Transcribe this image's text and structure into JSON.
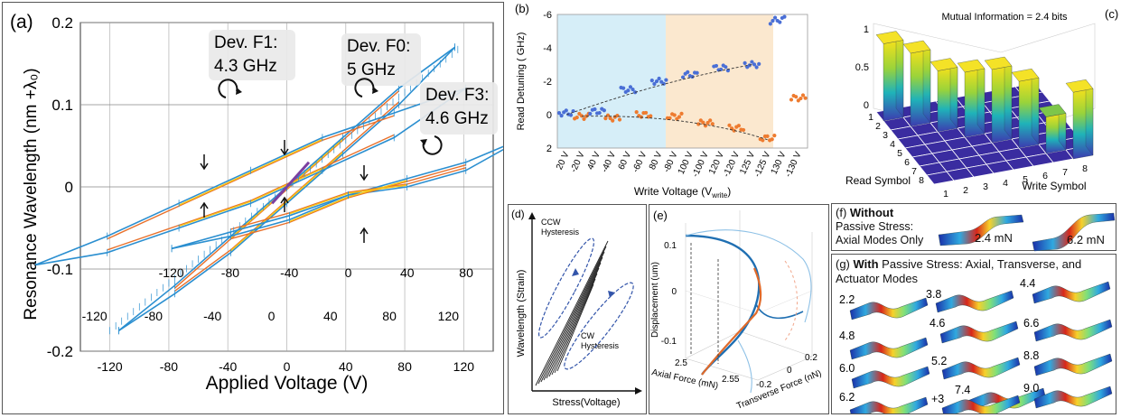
{
  "panel_a": {
    "label": "(a)",
    "xlabel": "Applied Voltage (V)",
    "ylabel": "Resonance Wavelength (nm +λ₀)",
    "y_ticks": [
      "0.2",
      "0.1",
      "0",
      "-0.1",
      "-0.2"
    ],
    "x_ticks_main": [
      "-120",
      "-80",
      "-40",
      "0",
      "40",
      "80",
      "120"
    ],
    "x_ticks_f0": [
      "-120",
      "-80",
      "-40",
      "0",
      "40",
      "80",
      "120"
    ],
    "x_ticks_f3": [
      "-120",
      "-80",
      "-40",
      "0",
      "40",
      "80",
      "120"
    ],
    "dev_f1": [
      "Dev. F1:",
      "4.3 GHz"
    ],
    "dev_f0": [
      "Dev. F0:",
      "5 GHz"
    ],
    "dev_f3": [
      "Dev. F3:",
      "4.6 GHz"
    ]
  },
  "panel_b": {
    "label": "(b)",
    "ylabel": "Read Detuning  ( GHz)",
    "xlabel": "Write Voltage (V",
    "xlabel_sub": "write",
    "xlabel_end": ")",
    "y_ticks": [
      "-6",
      "-4",
      "-2",
      "0",
      "2"
    ],
    "x_ticks": [
      "20 V",
      "-20 V",
      "40 V",
      "-40 V",
      "60 V",
      "-60 V",
      "80 V",
      "-80 V",
      "100 V",
      "-100 V",
      "120 V",
      "-120 V",
      "125 V",
      "-125 V",
      "130 V",
      "-130 V"
    ]
  },
  "panel_c": {
    "label": "(c)",
    "title": "Mutual Information = 2.4 bits",
    "z_ticks": [
      "1",
      "0.5",
      "0"
    ],
    "read_ticks": [
      "1",
      "2",
      "3",
      "4",
      "5",
      "6",
      "7",
      "8"
    ],
    "write_ticks": [
      "1",
      "2",
      "3",
      "4",
      "5",
      "6",
      "7",
      "8"
    ],
    "read_label": "Read Symbol",
    "write_label": "Write Symbol"
  },
  "panel_d": {
    "label": "(d)",
    "ccw": [
      "CCW",
      "Hysteresis"
    ],
    "cw": [
      "CW",
      "Hysteresis"
    ],
    "ylabel": "Wavelength (Strain)",
    "xlabel": "Stress(Voltage)"
  },
  "panel_e": {
    "label": "(e)",
    "z_ticks": [
      "0.1",
      "0",
      "-0.1"
    ],
    "zlabel": "Displacement (um)",
    "axial_ticks": [
      "2.5",
      "2.55"
    ],
    "axial_label": "Axial Force (mN)",
    "transverse_ticks": [
      "-0.2",
      "0",
      "0.2"
    ],
    "transverse_label": "Transverse Force (nN)"
  },
  "panel_f": {
    "label": "(f)",
    "bold": "Without",
    "line2": "Passive Stress:",
    "line3": "Axial Modes Only",
    "m1": "2.4 mN",
    "m2": "6.2 mN"
  },
  "panel_g": {
    "label": "(g)",
    "bold": "With",
    "rest": " Passive Stress: Axial, Transverse, and",
    "line2": "Actuator Modes",
    "modes": [
      "2.2",
      "3.8",
      "4.4",
      "4.6",
      "6.6",
      "4.8",
      "8.8",
      "6.0",
      "5.2",
      "7.4",
      "6.2",
      "+3",
      "9.0"
    ]
  },
  "colors": {
    "blue": "#2b8fd0",
    "orange": "#e8702a",
    "yellow": "#f5c518",
    "purple": "#7b3fa0",
    "b_blue": "#4a6fd6",
    "b_orange": "#ee7b2f",
    "cyan_bg": "#d6eef8",
    "tan_bg": "#fbe8cf"
  },
  "chart_data": [
    {
      "type": "line",
      "title": "",
      "xlabel": "Applied Voltage (V)",
      "ylabel": "Resonance Wavelength (nm +λ₀)",
      "ylim": [
        -0.2,
        0.2
      ],
      "xlim": [
        -120,
        120
      ],
      "grid": true,
      "series": [
        {
          "name": "Dev. F1: 4.3 GHz",
          "up_x": [
            -120,
            -80,
            -40,
            0,
            40,
            80,
            120
          ],
          "up_y": [
            -0.175,
            -0.12,
            -0.06,
            0.0,
            0.06,
            0.12,
            0.17
          ],
          "down_x": [
            120,
            80,
            40,
            0,
            -40,
            -80,
            -120
          ],
          "down_y": [
            0.17,
            0.1,
            0.04,
            -0.02,
            -0.08,
            -0.13,
            -0.175
          ]
        },
        {
          "name": "Dev. F0: 5 GHz",
          "up_x": [
            -120,
            -80,
            -40,
            0,
            40,
            80,
            120
          ],
          "up_y": [
            -0.095,
            -0.06,
            -0.02,
            0.02,
            0.06,
            0.09,
            0.12
          ],
          "down_x": [
            120,
            80,
            40,
            0,
            -40,
            -80,
            -120
          ],
          "down_y": [
            0.12,
            0.06,
            0.02,
            -0.02,
            -0.05,
            -0.08,
            -0.095
          ]
        },
        {
          "name": "Dev. F3: 4.6 GHz",
          "up_x": [
            -120,
            -80,
            -40,
            0,
            40,
            80,
            120
          ],
          "up_y": [
            -0.075,
            -0.06,
            -0.04,
            -0.01,
            0.01,
            0.03,
            0.06
          ],
          "down_x": [
            120,
            80,
            40,
            0,
            -40,
            -80,
            -120
          ],
          "down_y": [
            0.06,
            0.02,
            0.0,
            -0.01,
            -0.035,
            -0.055,
            -0.075
          ]
        }
      ]
    },
    {
      "type": "scatter",
      "title": "",
      "xlabel": "Write Voltage (Vwrite)",
      "ylabel": "Read Detuning  ( GHz)",
      "ylim": [
        2,
        -6
      ],
      "categories": [
        "20 V",
        "-20 V",
        "40 V",
        "-40 V",
        "60 V",
        "-60 V",
        "80 V",
        "-80 V",
        "100 V",
        "-100 V",
        "120 V",
        "-120 V",
        "125 V",
        "-125 V",
        "130 V",
        "-130 V"
      ],
      "series": [
        {
          "name": "",
          "values": [
            -0.1,
            0.1,
            -0.2,
            0.2,
            -1.5,
            0.0,
            -2.0,
            0.1,
            -2.4,
            0.5,
            -2.8,
            0.8,
            -3.0,
            1.4,
            -5.6,
            -1.0
          ]
        }
      ]
    },
    {
      "type": "bar",
      "title": "Mutual Information = 2.4 bits",
      "xlabel": "Write Symbol",
      "ylabel": "Read Symbol",
      "zlim": [
        0,
        1
      ],
      "categories": [
        "1",
        "2",
        "3",
        "4",
        "5",
        "6",
        "7",
        "8"
      ],
      "values": [
        0.95,
        0.9,
        0.75,
        0.8,
        0.9,
        0.82,
        0.45,
        0.82
      ]
    }
  ]
}
